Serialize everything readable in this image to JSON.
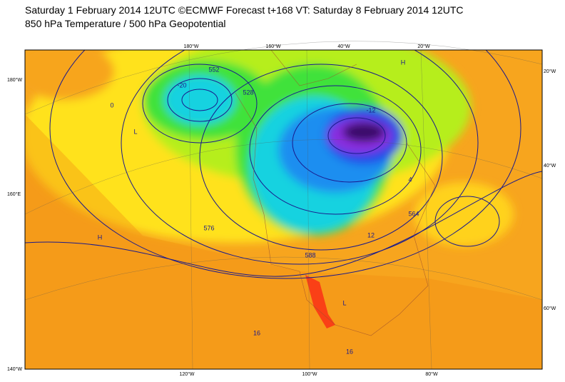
{
  "header": {
    "title": "Saturday 1 February 2014 12UTC ©ECMWF Forecast t+168 VT: Saturday 8 February 2014 12UTC",
    "subtitle": "850 hPa Temperature / 500 hPa Geopotential"
  },
  "map": {
    "top_labels": [
      "180°W",
      "160°W",
      "40°W",
      "20°W"
    ],
    "left_labels": [
      "180°W",
      "160°E",
      "140°W"
    ],
    "right_labels": [
      "20°W",
      "40°W",
      "60°W"
    ],
    "bottom_labels": [
      "120°W",
      "100°W",
      "80°W"
    ],
    "contour_labels": [
      "552",
      "576",
      "12",
      "16",
      "4",
      "0",
      "-12",
      "-20",
      "528",
      "564",
      "588",
      "16",
      "H",
      "L",
      "H",
      "L"
    ]
  }
}
